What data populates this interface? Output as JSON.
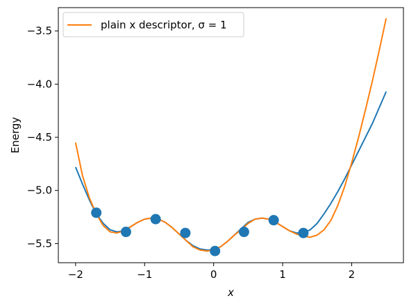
{
  "chart_data": {
    "type": "line",
    "title": "",
    "xlabel": "x",
    "ylabel": "Energy",
    "xlim": [
      -2.25,
      2.75
    ],
    "ylim": [
      -5.68,
      -3.28
    ],
    "xticks": [
      -2,
      -1,
      0,
      1,
      2
    ],
    "yticks": [
      -5.5,
      -5.0,
      -4.5,
      -4.0,
      -3.5
    ],
    "xtick_labels": [
      "−2",
      "−1",
      "0",
      "1",
      "2"
    ],
    "ytick_labels": [
      "−5.5",
      "−5.0",
      "−4.5",
      "−4.0",
      "−3.5"
    ],
    "grid": false,
    "legend": {
      "position": "top-left",
      "entries": [
        "plain x descriptor, σ = 1"
      ]
    },
    "series": [
      {
        "type": "line",
        "color": "#1f77b4",
        "x": [
          -2.0,
          -1.9,
          -1.8,
          -1.7,
          -1.6,
          -1.5,
          -1.4,
          -1.3,
          -1.2,
          -1.1,
          -1.0,
          -0.9,
          -0.8,
          -0.7,
          -0.6,
          -0.5,
          -0.4,
          -0.3,
          -0.2,
          -0.1,
          0.0,
          0.1,
          0.2,
          0.3,
          0.4,
          0.5,
          0.6,
          0.7,
          0.8,
          0.9,
          1.0,
          1.1,
          1.2,
          1.3,
          1.4,
          1.5,
          1.6,
          1.7,
          1.8,
          1.9,
          2.0,
          2.1,
          2.2,
          2.3,
          2.4,
          2.5
        ],
        "y": [
          -4.78,
          -4.94,
          -5.09,
          -5.22,
          -5.31,
          -5.37,
          -5.39,
          -5.38,
          -5.34,
          -5.3,
          -5.27,
          -5.26,
          -5.27,
          -5.3,
          -5.35,
          -5.41,
          -5.47,
          -5.52,
          -5.55,
          -5.56,
          -5.56,
          -5.53,
          -5.48,
          -5.42,
          -5.36,
          -5.3,
          -5.27,
          -5.26,
          -5.27,
          -5.3,
          -5.34,
          -5.38,
          -5.4,
          -5.4,
          -5.37,
          -5.31,
          -5.22,
          -5.12,
          -5.01,
          -4.89,
          -4.76,
          -4.63,
          -4.5,
          -4.37,
          -4.22,
          -4.07
        ]
      },
      {
        "type": "line",
        "name": "plain x descriptor, σ = 1",
        "color": "#ff7f0e",
        "x": [
          -2.0,
          -1.9,
          -1.8,
          -1.7,
          -1.6,
          -1.5,
          -1.4,
          -1.3,
          -1.2,
          -1.1,
          -1.0,
          -0.9,
          -0.8,
          -0.7,
          -0.6,
          -0.5,
          -0.4,
          -0.3,
          -0.2,
          -0.1,
          0.0,
          0.1,
          0.2,
          0.3,
          0.4,
          0.5,
          0.6,
          0.7,
          0.8,
          0.9,
          1.0,
          1.1,
          1.2,
          1.3,
          1.4,
          1.5,
          1.6,
          1.7,
          1.8,
          1.9,
          2.0,
          2.1,
          2.2,
          2.3,
          2.4,
          2.5
        ],
        "y": [
          -4.55,
          -4.86,
          -5.07,
          -5.22,
          -5.33,
          -5.39,
          -5.4,
          -5.38,
          -5.34,
          -5.3,
          -5.27,
          -5.26,
          -5.27,
          -5.3,
          -5.35,
          -5.41,
          -5.47,
          -5.53,
          -5.56,
          -5.57,
          -5.56,
          -5.53,
          -5.48,
          -5.42,
          -5.37,
          -5.31,
          -5.27,
          -5.26,
          -5.27,
          -5.3,
          -5.34,
          -5.38,
          -5.41,
          -5.43,
          -5.44,
          -5.42,
          -5.37,
          -5.28,
          -5.14,
          -4.96,
          -4.74,
          -4.5,
          -4.24,
          -3.97,
          -3.68,
          -3.38
        ]
      },
      {
        "type": "scatter",
        "color": "#1f77b4",
        "x": [
          -1.7,
          -1.27,
          -0.84,
          -0.41,
          0.02,
          0.44,
          0.87,
          1.3
        ],
        "y": [
          -5.21,
          -5.39,
          -5.27,
          -5.4,
          -5.57,
          -5.39,
          -5.28,
          -5.4
        ]
      }
    ]
  }
}
